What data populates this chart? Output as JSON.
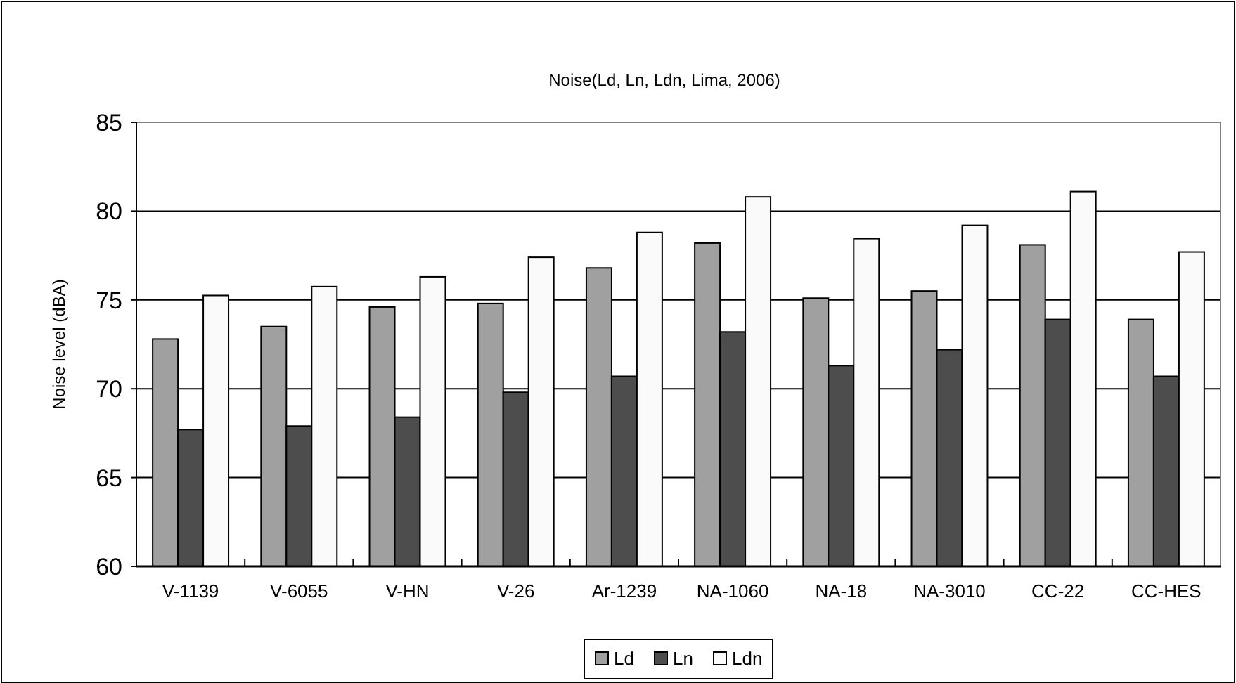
{
  "chart_data": {
    "type": "bar",
    "title": "Noise(Ld, Ln, Ldn, Lima, 2006)",
    "ylabel": "Noise level (dBA)",
    "categories": [
      "V-1139",
      "V-6055",
      "V-HN",
      "V-26",
      "Ar-1239",
      "NA-1060",
      "NA-18",
      "NA-3010",
      "CC-22",
      "CC-HES"
    ],
    "series": [
      {
        "name": "Ld",
        "color": "#a0a0a0",
        "values": [
          72.8,
          73.5,
          74.6,
          74.8,
          76.8,
          78.2,
          75.1,
          75.5,
          78.1,
          73.9
        ]
      },
      {
        "name": "Ln",
        "color": "#4d4d4d",
        "values": [
          67.7,
          67.9,
          68.4,
          69.8,
          70.7,
          73.2,
          71.3,
          72.2,
          73.9,
          70.7
        ]
      },
      {
        "name": "Ldn",
        "color": "#fafafa",
        "values": [
          75.25,
          75.75,
          76.3,
          77.4,
          78.8,
          80.8,
          78.45,
          79.2,
          81.1,
          77.7
        ]
      }
    ],
    "ylim": [
      60,
      85
    ],
    "yticks": [
      60,
      65,
      70,
      75,
      80,
      85
    ],
    "grid": "y",
    "legend": "bottom"
  }
}
